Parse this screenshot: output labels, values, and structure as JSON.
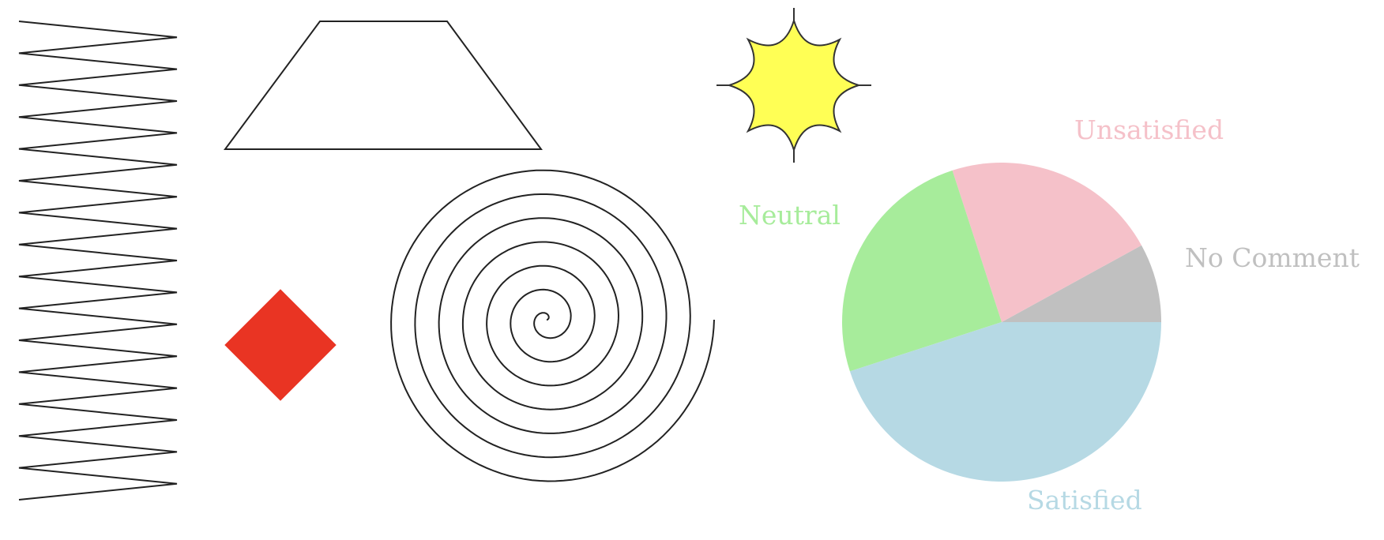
{
  "shapes": {
    "zigzag": {
      "stroke": "#222222"
    },
    "trapezoid": {
      "stroke": "#222222"
    },
    "star": {
      "fill": "#ffff55",
      "stroke": "#333333"
    },
    "diamond": {
      "fill": "#e93423"
    },
    "spiral": {
      "stroke": "#222222"
    }
  },
  "chart_data": {
    "type": "pie",
    "title": "",
    "legend": "none",
    "start_angle_deg": 0,
    "direction": "counterclockwise",
    "slices": [
      {
        "label": "No Comment",
        "value": 8,
        "color": "#c0c0c0"
      },
      {
        "label": "Unsatisfied",
        "value": 22,
        "color": "#f5c1c9"
      },
      {
        "label": "Neutral",
        "value": 25,
        "color": "#a7ec9b"
      },
      {
        "label": "Satisfied",
        "value": 45,
        "color": "#b6d9e4"
      }
    ]
  }
}
